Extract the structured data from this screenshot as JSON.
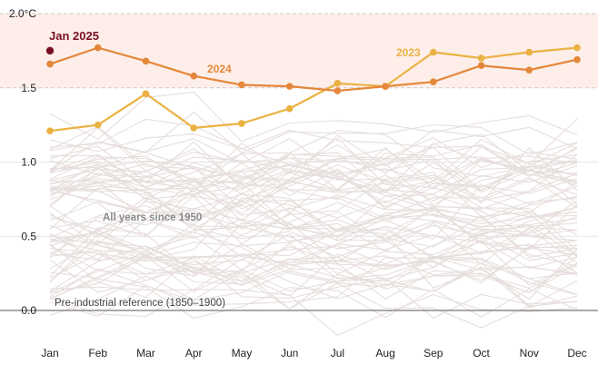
{
  "chart_data": {
    "type": "line",
    "categories": [
      "Jan",
      "Feb",
      "Mar",
      "Apr",
      "May",
      "Jun",
      "Jul",
      "Aug",
      "Sep",
      "Oct",
      "Nov",
      "Dec"
    ],
    "ylim": [
      0,
      2.0
    ],
    "y_ticks": [
      {
        "value": 0,
        "label": "0.0"
      },
      {
        "value": 0.5,
        "label": "0.5"
      },
      {
        "value": 1.0,
        "label": "1.0"
      },
      {
        "value": 1.5,
        "label": "1.5"
      },
      {
        "value": 2.0,
        "label": "2.0°C"
      }
    ],
    "shaded_band": {
      "from": 1.5,
      "to": 2.0
    },
    "series": [
      {
        "name": "2024",
        "color": "#e5873a",
        "values": [
          1.66,
          1.77,
          1.68,
          1.58,
          1.52,
          1.51,
          1.48,
          1.51,
          1.54,
          1.65,
          1.62,
          1.69
        ]
      },
      {
        "name": "2023",
        "color": "#eab242",
        "values": [
          1.21,
          1.25,
          1.46,
          1.23,
          1.26,
          1.36,
          1.53,
          1.51,
          1.74,
          1.7,
          1.74,
          1.77
        ]
      }
    ],
    "highlight_point": {
      "label": "Jan 2025",
      "category": "Jan",
      "value": 1.75,
      "color": "#7a1024"
    },
    "background_series_label": "All years since 1950",
    "background_series_color": "#e6dedc",
    "baseline_label": "Pre-industrial reference (1850–1900)",
    "grid": true
  }
}
